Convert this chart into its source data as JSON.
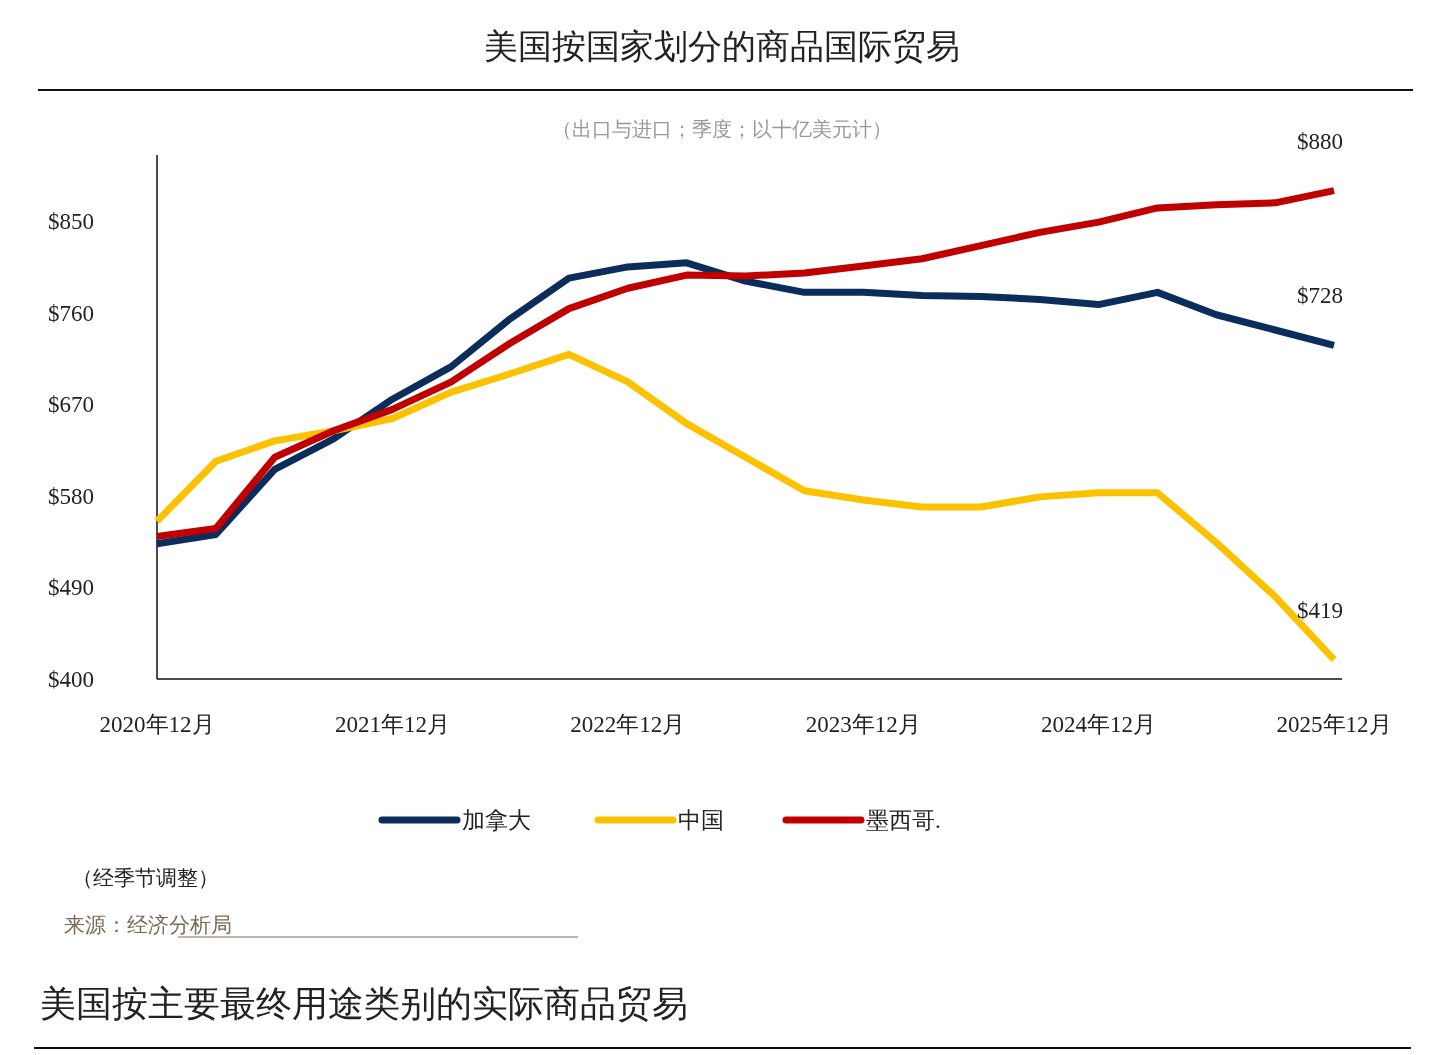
{
  "chart_data": {
    "type": "line",
    "title": "美国按国家划分的商品国际贸易",
    "subtitle": "（出口与进口；季度；以十亿美元计）",
    "categories": [
      "2020年12月",
      null,
      null,
      null,
      "2021年12月",
      null,
      null,
      null,
      "2022年12月",
      null,
      null,
      null,
      "2023年12月",
      null,
      null,
      null,
      "2024年12月",
      null,
      null,
      null,
      "2025年12月"
    ],
    "series": [
      {
        "name": "加拿大",
        "color": "#0b2d5b",
        "values": [
          533,
          542,
          606,
          636,
          675,
          707,
          754,
          794,
          805,
          809,
          791,
          780,
          780,
          777,
          776,
          773,
          768,
          780,
          758,
          743,
          728
        ]
      },
      {
        "name": "中国",
        "color": "#fcc200",
        "values": [
          555,
          614,
          634,
          644,
          656,
          682,
          700,
          719,
          692,
          651,
          618,
          585,
          576,
          569,
          569,
          579,
          583,
          583,
          534,
          481,
          419
        ]
      },
      {
        "name": "墨西哥.",
        "color": "#c00000",
        "values": [
          540,
          548,
          618,
          644,
          665,
          692,
          730,
          764,
          784,
          797,
          796,
          799,
          806,
          813,
          826,
          839,
          849,
          863,
          866,
          868,
          880
        ]
      }
    ],
    "ylim": [
      400,
      915
    ],
    "yticks": [
      {
        "value": 400,
        "label": "$400"
      },
      {
        "value": 490,
        "label": "$490"
      },
      {
        "value": 580,
        "label": "$580"
      },
      {
        "value": 670,
        "label": "$670"
      },
      {
        "value": 760,
        "label": "$760"
      },
      {
        "value": 850,
        "label": "$850"
      }
    ],
    "annotations": [
      {
        "text": "$880",
        "x": "2025年12月",
        "y": 880
      },
      {
        "text": "$728",
        "x": "2025年12月",
        "y": 728
      },
      {
        "text": "$419",
        "x": "2025年12月",
        "y": 419
      },
      "（经季节调整）",
      "来源：经济分析局",
      "美国按主要最终用途类别的实际商品贸易"
    ],
    "legend": "bottom",
    "grid": false,
    "marker": "none",
    "line_style": "solid"
  }
}
